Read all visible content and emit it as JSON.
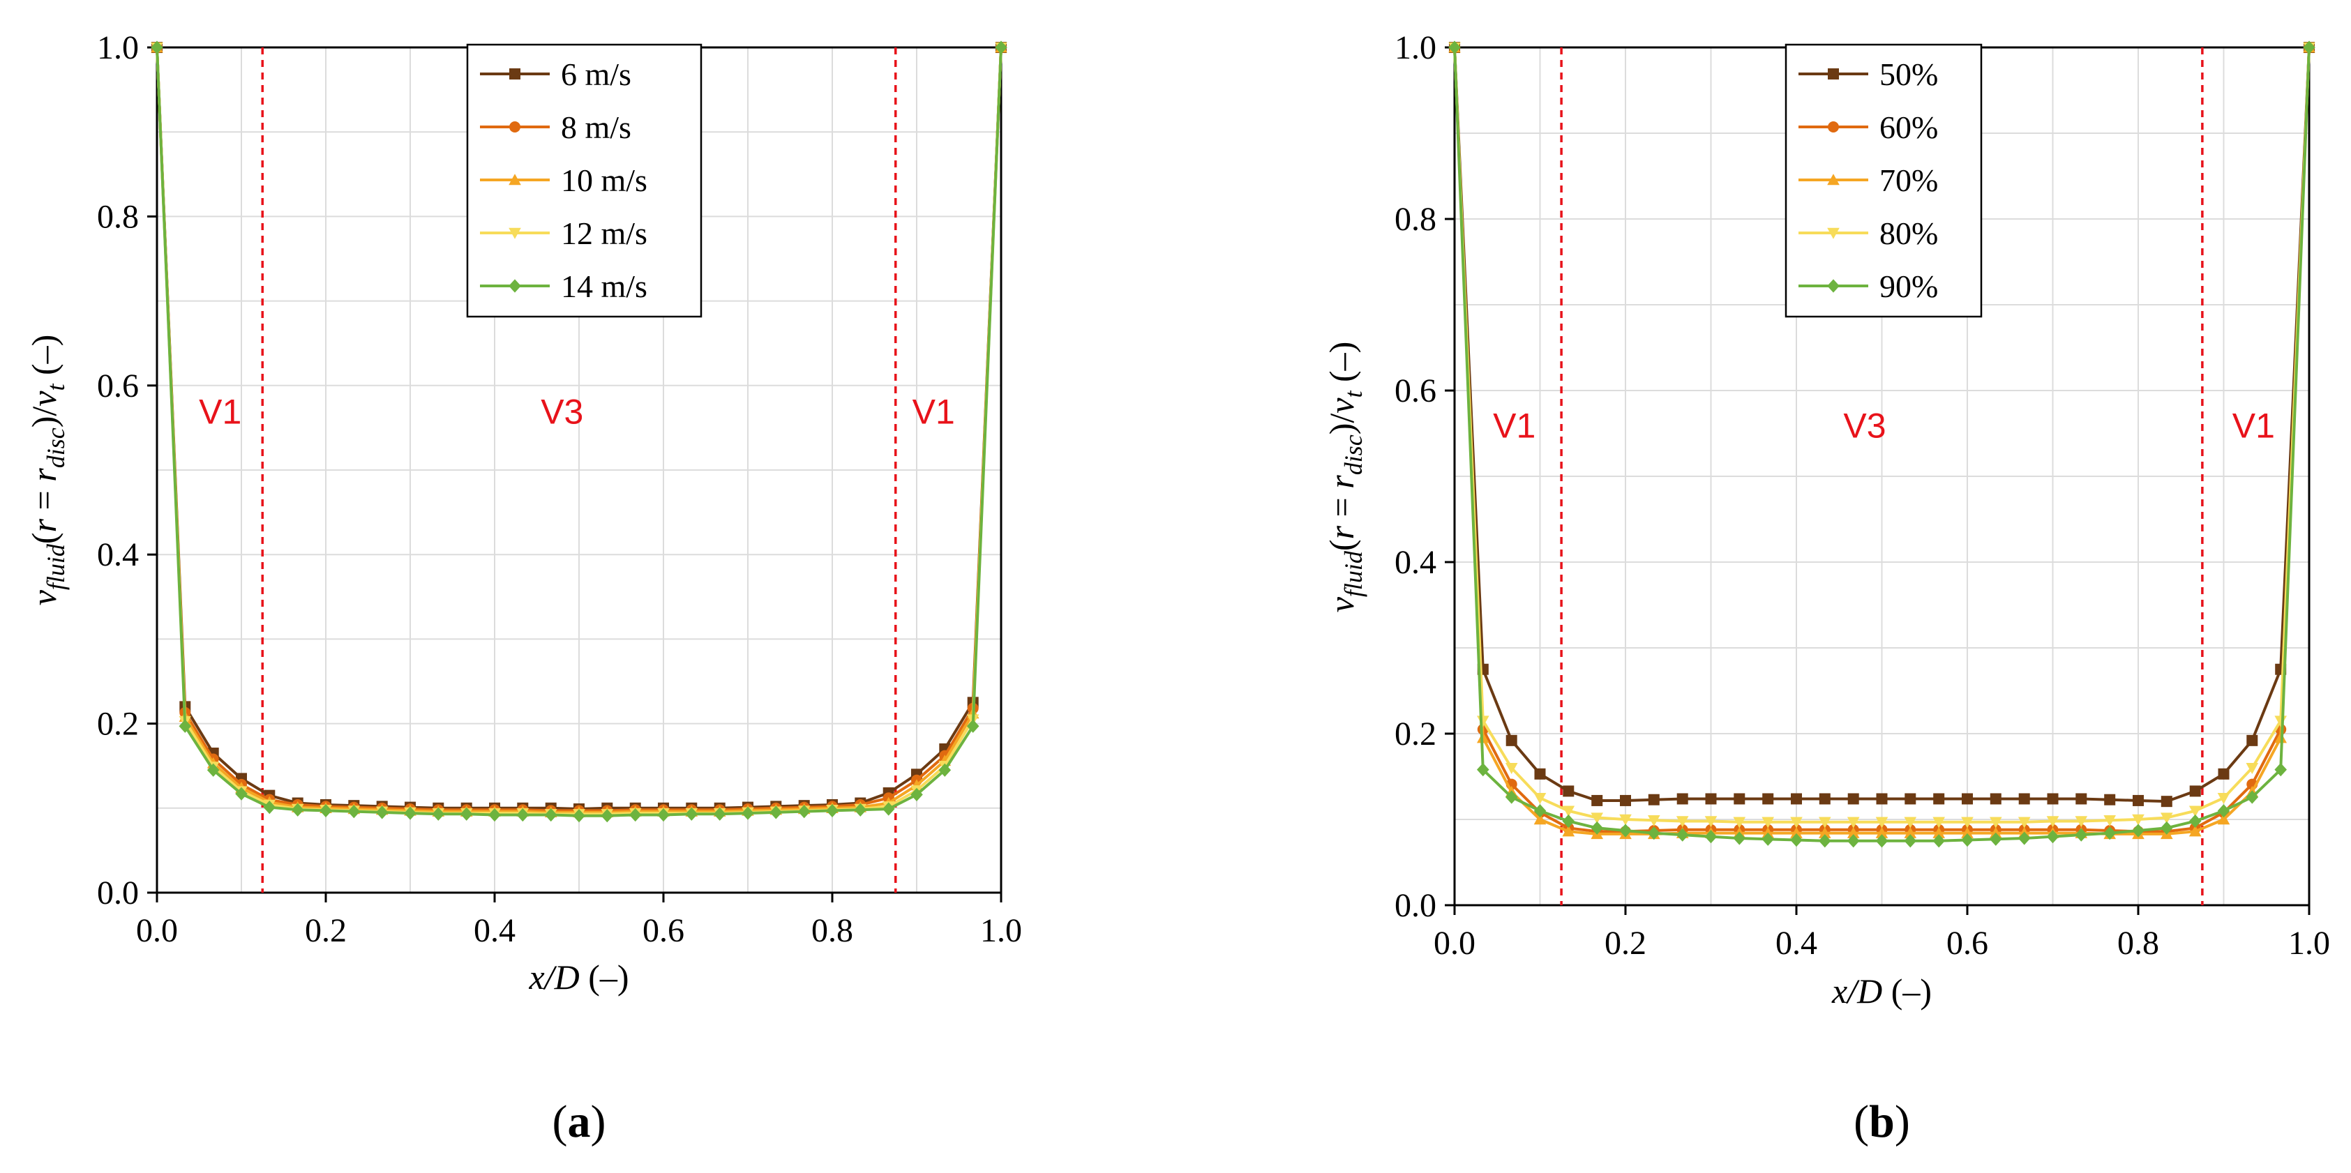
{
  "chart_data": [
    {
      "type": "line",
      "panel_label": "(a)",
      "xlabel": "x/D (–)",
      "ylabel": "v_fluid(r = r_disc)/v_t (–)",
      "xlim": [
        0,
        1
      ],
      "ylim": [
        0,
        1
      ],
      "x_ticks": [
        "0.0",
        "0.2",
        "0.4",
        "0.6",
        "0.8",
        "1.0"
      ],
      "y_ticks": [
        "0.0",
        "0.2",
        "0.4",
        "0.6",
        "0.8",
        "1.0"
      ],
      "grid": true,
      "legend_position": "top-center",
      "region_lines_x": [
        0.125,
        0.875
      ],
      "region_labels": [
        {
          "text": "V1",
          "x": 0.075,
          "y": 0.555
        },
        {
          "text": "V3",
          "x": 0.48,
          "y": 0.555
        },
        {
          "text": "V1",
          "x": 0.92,
          "y": 0.555
        }
      ],
      "x": [
        0.0,
        0.0333,
        0.0667,
        0.1,
        0.1333,
        0.1667,
        0.2,
        0.2333,
        0.2667,
        0.3,
        0.3333,
        0.3667,
        0.4,
        0.4333,
        0.4667,
        0.5,
        0.5333,
        0.5667,
        0.6,
        0.6333,
        0.6667,
        0.7,
        0.7333,
        0.7667,
        0.8,
        0.8333,
        0.8667,
        0.9,
        0.9333,
        0.9667,
        1.0
      ],
      "series": [
        {
          "name": "6 m/s",
          "color": "#6b3a13",
          "marker": "square",
          "values": [
            1.0,
            0.22,
            0.165,
            0.135,
            0.115,
            0.106,
            0.104,
            0.103,
            0.102,
            0.101,
            0.1,
            0.1,
            0.1,
            0.1,
            0.1,
            0.099,
            0.1,
            0.1,
            0.1,
            0.1,
            0.1,
            0.101,
            0.102,
            0.103,
            0.104,
            0.106,
            0.118,
            0.14,
            0.17,
            0.225,
            1.0
          ]
        },
        {
          "name": "8 m/s",
          "color": "#e06a10",
          "marker": "circle",
          "values": [
            1.0,
            0.213,
            0.158,
            0.128,
            0.11,
            0.104,
            0.102,
            0.101,
            0.1,
            0.099,
            0.098,
            0.098,
            0.098,
            0.098,
            0.097,
            0.097,
            0.097,
            0.098,
            0.098,
            0.098,
            0.098,
            0.099,
            0.1,
            0.101,
            0.102,
            0.104,
            0.112,
            0.133,
            0.162,
            0.218,
            1.0
          ]
        },
        {
          "name": "10 m/s",
          "color": "#f5a623",
          "marker": "triangle-up",
          "values": [
            1.0,
            0.208,
            0.153,
            0.124,
            0.107,
            0.101,
            0.1,
            0.099,
            0.098,
            0.097,
            0.096,
            0.096,
            0.096,
            0.096,
            0.095,
            0.095,
            0.095,
            0.096,
            0.096,
            0.096,
            0.096,
            0.097,
            0.098,
            0.099,
            0.1,
            0.101,
            0.106,
            0.127,
            0.156,
            0.212,
            1.0
          ]
        },
        {
          "name": "12 m/s",
          "color": "#f7dc5a",
          "marker": "triangle-down",
          "values": [
            1.0,
            0.203,
            0.149,
            0.12,
            0.104,
            0.099,
            0.098,
            0.097,
            0.096,
            0.095,
            0.094,
            0.094,
            0.094,
            0.094,
            0.093,
            0.093,
            0.093,
            0.094,
            0.094,
            0.094,
            0.094,
            0.095,
            0.096,
            0.097,
            0.098,
            0.099,
            0.102,
            0.121,
            0.15,
            0.205,
            1.0
          ]
        },
        {
          "name": "14 m/s",
          "color": "#6db33f",
          "marker": "diamond",
          "values": [
            1.0,
            0.197,
            0.145,
            0.117,
            0.101,
            0.098,
            0.097,
            0.096,
            0.095,
            0.094,
            0.093,
            0.093,
            0.092,
            0.092,
            0.092,
            0.091,
            0.091,
            0.092,
            0.092,
            0.093,
            0.093,
            0.094,
            0.095,
            0.096,
            0.097,
            0.098,
            0.099,
            0.116,
            0.145,
            0.197,
            1.0
          ]
        }
      ]
    },
    {
      "type": "line",
      "panel_label": "(b)",
      "xlabel": "x/D (–)",
      "ylabel": "v_fluid(r = r_disc)/v_t (–)",
      "xlim": [
        0,
        1
      ],
      "ylim": [
        0,
        1
      ],
      "x_ticks": [
        "0.0",
        "0.2",
        "0.4",
        "0.6",
        "0.8",
        "1.0"
      ],
      "y_ticks": [
        "0.0",
        "0.2",
        "0.4",
        "0.6",
        "0.8",
        "1.0"
      ],
      "grid": true,
      "legend_position": "top-center",
      "region_lines_x": [
        0.125,
        0.875
      ],
      "region_labels": [
        {
          "text": "V1",
          "x": 0.07,
          "y": 0.545
        },
        {
          "text": "V3",
          "x": 0.48,
          "y": 0.545
        },
        {
          "text": "V1",
          "x": 0.935,
          "y": 0.545
        }
      ],
      "x": [
        0.0,
        0.0333,
        0.0667,
        0.1,
        0.1333,
        0.1667,
        0.2,
        0.2333,
        0.2667,
        0.3,
        0.3333,
        0.3667,
        0.4,
        0.4333,
        0.4667,
        0.5,
        0.5333,
        0.5667,
        0.6,
        0.6333,
        0.6667,
        0.7,
        0.7333,
        0.7667,
        0.8,
        0.8333,
        0.8667,
        0.9,
        0.9333,
        0.9667,
        1.0
      ],
      "series": [
        {
          "name": "50%",
          "color": "#6b3a13",
          "marker": "square",
          "values": [
            1.0,
            0.275,
            0.192,
            0.153,
            0.133,
            0.122,
            0.122,
            0.123,
            0.124,
            0.124,
            0.124,
            0.124,
            0.124,
            0.124,
            0.124,
            0.124,
            0.124,
            0.124,
            0.124,
            0.124,
            0.124,
            0.124,
            0.124,
            0.123,
            0.122,
            0.121,
            0.133,
            0.153,
            0.192,
            0.275,
            1.0
          ]
        },
        {
          "name": "60%",
          "color": "#e06a10",
          "marker": "circle",
          "values": [
            1.0,
            0.205,
            0.141,
            0.108,
            0.09,
            0.086,
            0.086,
            0.087,
            0.088,
            0.088,
            0.088,
            0.088,
            0.088,
            0.088,
            0.088,
            0.088,
            0.088,
            0.088,
            0.088,
            0.088,
            0.088,
            0.088,
            0.088,
            0.087,
            0.086,
            0.086,
            0.09,
            0.108,
            0.141,
            0.205,
            1.0
          ]
        },
        {
          "name": "70%",
          "color": "#f5a623",
          "marker": "triangle-up",
          "values": [
            1.0,
            0.195,
            0.132,
            0.1,
            0.086,
            0.083,
            0.083,
            0.083,
            0.084,
            0.084,
            0.084,
            0.084,
            0.084,
            0.084,
            0.084,
            0.084,
            0.084,
            0.084,
            0.084,
            0.084,
            0.084,
            0.084,
            0.084,
            0.083,
            0.083,
            0.083,
            0.086,
            0.1,
            0.132,
            0.195,
            1.0
          ]
        },
        {
          "name": "80%",
          "color": "#f7dc5a",
          "marker": "triangle-down",
          "values": [
            1.0,
            0.215,
            0.16,
            0.125,
            0.11,
            0.102,
            0.1,
            0.099,
            0.098,
            0.098,
            0.097,
            0.097,
            0.097,
            0.097,
            0.097,
            0.097,
            0.097,
            0.097,
            0.097,
            0.097,
            0.097,
            0.098,
            0.098,
            0.099,
            0.1,
            0.102,
            0.11,
            0.125,
            0.16,
            0.215,
            1.0
          ]
        },
        {
          "name": "90%",
          "color": "#6db33f",
          "marker": "diamond",
          "values": [
            1.0,
            0.158,
            0.126,
            0.11,
            0.098,
            0.09,
            0.087,
            0.084,
            0.082,
            0.08,
            0.078,
            0.077,
            0.076,
            0.075,
            0.075,
            0.075,
            0.075,
            0.075,
            0.076,
            0.077,
            0.078,
            0.08,
            0.082,
            0.084,
            0.087,
            0.09,
            0.098,
            0.11,
            0.126,
            0.158,
            1.0
          ]
        }
      ]
    }
  ]
}
